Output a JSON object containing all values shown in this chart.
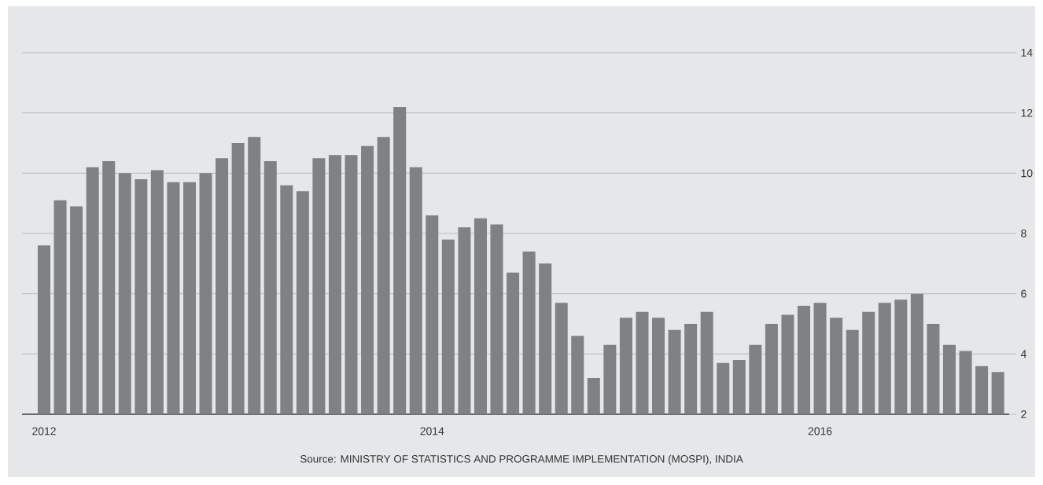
{
  "chart_data": {
    "type": "bar",
    "categories": [
      "2012",
      null,
      null,
      null,
      null,
      null,
      null,
      null,
      null,
      null,
      null,
      null,
      null,
      null,
      null,
      null,
      null,
      null,
      null,
      null,
      null,
      null,
      null,
      null,
      "2014",
      null,
      null,
      null,
      null,
      null,
      null,
      null,
      null,
      null,
      null,
      null,
      null,
      null,
      null,
      null,
      null,
      null,
      null,
      null,
      null,
      null,
      null,
      null,
      "2016",
      null,
      null,
      null,
      null,
      null,
      null,
      null,
      null,
      null,
      null,
      null
    ],
    "values": [
      7.6,
      9.1,
      8.9,
      10.2,
      10.4,
      10.0,
      9.8,
      10.1,
      9.7,
      9.7,
      10.0,
      10.5,
      11.0,
      11.2,
      10.4,
      9.6,
      9.4,
      10.5,
      10.6,
      10.6,
      10.9,
      11.2,
      12.2,
      10.2,
      8.6,
      7.8,
      8.2,
      8.5,
      8.3,
      6.7,
      7.4,
      7.0,
      5.7,
      4.6,
      3.2,
      4.3,
      5.2,
      5.4,
      5.2,
      4.8,
      5.0,
      5.4,
      3.7,
      3.8,
      4.3,
      5.0,
      5.3,
      5.6,
      5.7,
      5.2,
      4.8,
      5.4,
      5.7,
      5.8,
      6.0,
      5.0,
      4.3,
      4.1,
      3.6,
      3.4
    ],
    "color": "#808184",
    "ylim": [
      2,
      14
    ],
    "yticks": [
      2,
      4,
      6,
      8,
      10,
      12,
      14
    ],
    "grid": "y",
    "annotations": [
      "Source: MINISTRY OF STATISTICS AND PROGRAMME IMPLEMENTATION (MOSPI), INDIA"
    ]
  }
}
